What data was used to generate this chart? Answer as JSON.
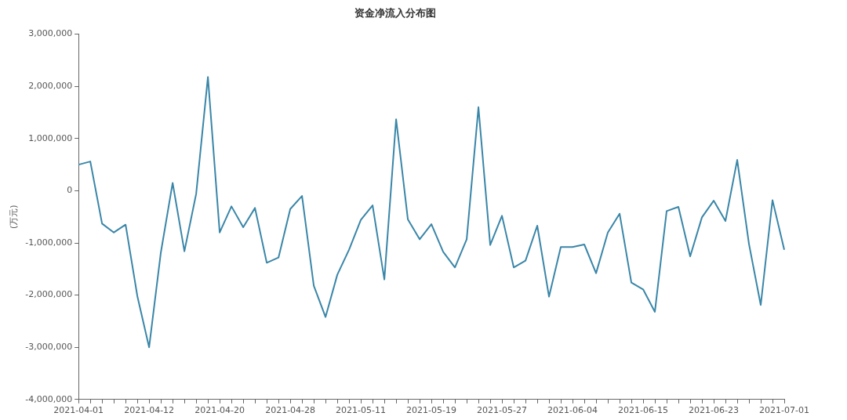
{
  "chart_data": {
    "type": "line",
    "title": "资金净流入分布图",
    "ylabel": "(万元)",
    "categories": [
      "2021-04-01",
      null,
      null,
      null,
      null,
      null,
      "2021-04-12",
      null,
      null,
      null,
      null,
      null,
      "2021-04-20",
      null,
      null,
      null,
      null,
      null,
      "2021-04-28",
      null,
      null,
      null,
      null,
      null,
      "2021-05-11",
      null,
      null,
      null,
      null,
      null,
      "2021-05-19",
      null,
      null,
      null,
      null,
      null,
      "2021-05-27",
      null,
      null,
      null,
      null,
      null,
      "2021-06-04",
      null,
      null,
      null,
      null,
      null,
      "2021-06-15",
      null,
      null,
      null,
      null,
      null,
      "2021-06-23",
      null,
      null,
      null,
      null,
      null,
      "2021-07-01"
    ],
    "series": [
      {
        "color": "#3a86a8",
        "values": [
          500000,
          560000,
          -630000,
          -800000,
          -650000,
          -2020000,
          -3000000,
          -1180000,
          150000,
          -1160000,
          -60000,
          2180000,
          -800000,
          -300000,
          -700000,
          -330000,
          -1380000,
          -1280000,
          -350000,
          -100000,
          -1820000,
          -2420000,
          -1610000,
          -1130000,
          -560000,
          -280000,
          -1700000,
          1370000,
          -550000,
          -930000,
          -640000,
          -1170000,
          -1470000,
          -930000,
          1600000,
          -1040000,
          -480000,
          -1470000,
          -1340000,
          -670000,
          -2030000,
          -1080000,
          -1080000,
          -1030000,
          -1580000,
          -800000,
          -440000,
          -1760000,
          -1890000,
          -2320000,
          -390000,
          -310000,
          -1260000,
          -510000,
          -190000,
          -580000,
          590000,
          -1020000,
          -2190000,
          -180000,
          -1130000
        ]
      }
    ],
    "ylim": [
      -4000000,
      3000000
    ],
    "yticks": [
      {
        "value": -4000000,
        "label": "-4,000,000"
      },
      {
        "value": -3000000,
        "label": "-3,000,000"
      },
      {
        "value": -2000000,
        "label": "-2,000,000"
      },
      {
        "value": -1000000,
        "label": "-1,000,000"
      },
      0,
      {
        "value": 1000000,
        "label": "1,000,000"
      },
      {
        "value": 2000000,
        "label": "2,000,000"
      },
      {
        "value": 3000000,
        "label": "3,000,000"
      }
    ],
    "grid": false,
    "legend": false,
    "marker": "none",
    "line_style": "solid"
  }
}
